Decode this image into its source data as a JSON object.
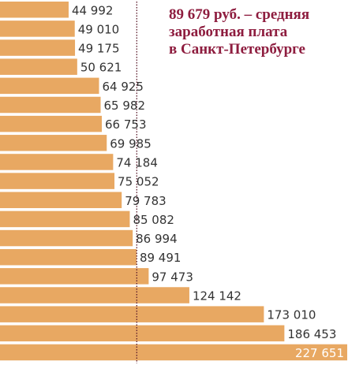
{
  "chart_data": {
    "type": "bar",
    "orientation": "horizontal",
    "values": [
      44992,
      49010,
      49175,
      50621,
      64925,
      65982,
      66753,
      69985,
      74184,
      75052,
      79783,
      85082,
      86994,
      89491,
      97473,
      124142,
      173010,
      186453,
      227651
    ],
    "value_labels": [
      "44 992",
      "49 010",
      "49 175",
      "50 621",
      "64 925",
      "65 982",
      "66 753",
      "69 985",
      "74 184",
      "75 052",
      "79 783",
      "85 082",
      "86 994",
      "89 491",
      "97 473",
      "124 142",
      "173 010",
      "186 453",
      "227 651"
    ],
    "reference_line": {
      "value": 89679,
      "style": "dotted"
    },
    "annotation": [
      "89 679 руб. – средняя",
      "заработная плата",
      "в Санкт-Петербурге"
    ],
    "xlim": [
      0,
      227651
    ],
    "grid": false,
    "legend": "none",
    "colors": {
      "bar": "#e8a862",
      "label": "#333333",
      "last_label": "#ffffff",
      "reference_line": "#5a1a2a",
      "annotation": "#8e1d3f"
    }
  }
}
